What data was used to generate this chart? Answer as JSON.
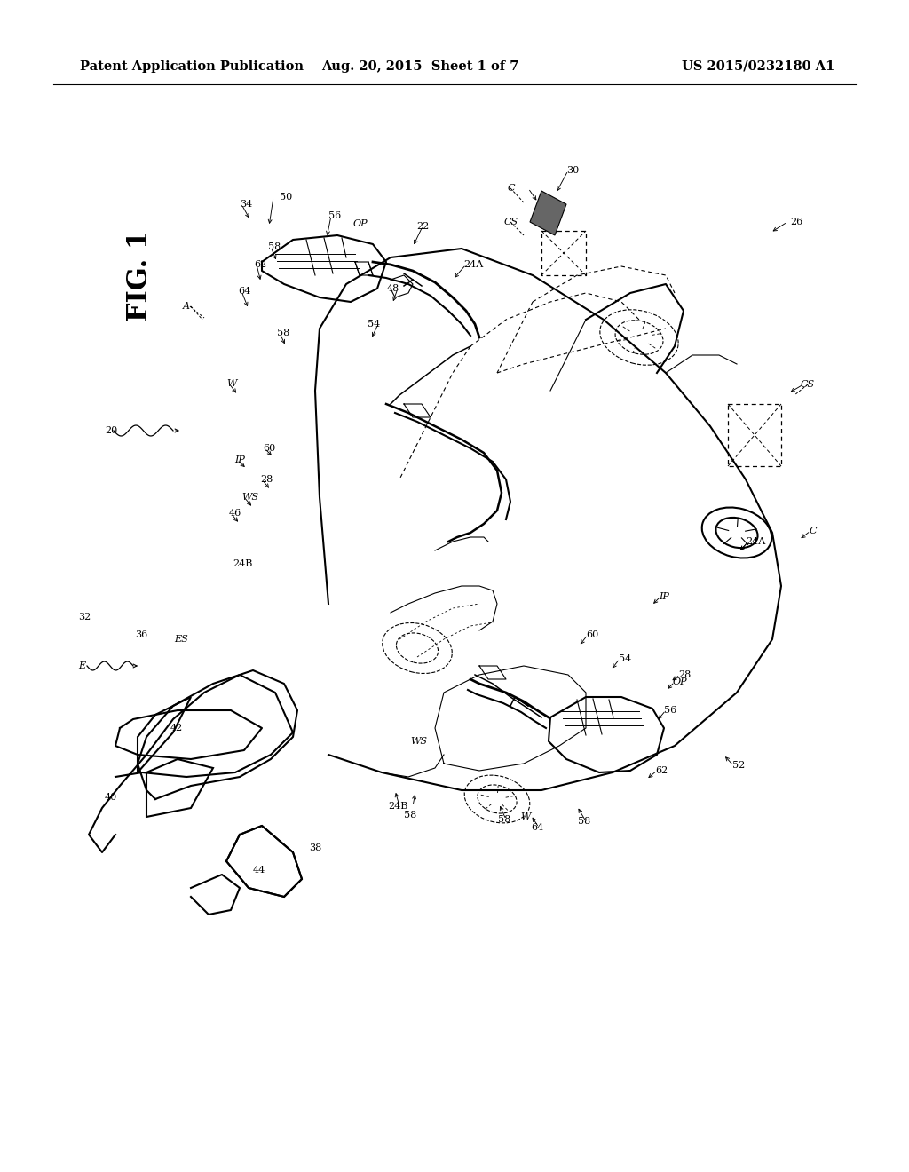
{
  "bg_color": "#ffffff",
  "header_left": "Patent Application Publication",
  "header_center": "Aug. 20, 2015  Sheet 1 of 7",
  "header_right": "US 2015/0232180 A1",
  "fig_label": "FIG. 1",
  "header_fontsize": 10.5,
  "fig_label_fontsize": 22,
  "page_width": 10.24,
  "page_height": 13.2,
  "lw_main": 1.5,
  "lw_thin": 0.8,
  "lw_med": 1.1,
  "ref_fontsize": 8.0,
  "letter_fontsize": 8.0
}
